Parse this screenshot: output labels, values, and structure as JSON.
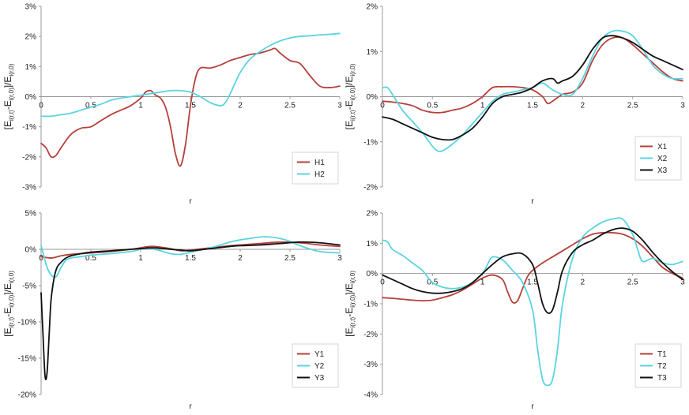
{
  "chart_data": [
    {
      "type": "line",
      "panel": "top-left",
      "title": "",
      "xlabel": "r",
      "ylabel": "[E_i(r,t) - E_i(r,0)] / E_i(r,0)",
      "ylabel_parts": {
        "open": "[E",
        "sub1": "i(r,t)",
        "mid": "-E",
        "sub2": "i(r,0)",
        "close": "]/E",
        "sub3": "i(r,0)"
      },
      "xlim": [
        0,
        3
      ],
      "ylim": [
        -3,
        3
      ],
      "xticks": [
        0,
        0.5,
        1,
        1.5,
        2,
        2.5,
        3
      ],
      "xtick_labels": [
        "0",
        "0.5",
        "1",
        "1.5",
        "2",
        "2.5",
        "3"
      ],
      "yticks": [
        -3,
        -2,
        -1,
        0,
        1,
        2,
        3
      ],
      "ytick_labels": [
        "-3%",
        "-2%",
        "-1%",
        "0%",
        "1%",
        "2%",
        "3%"
      ],
      "legend_position": "bottom-right",
      "series": [
        {
          "name": "H1",
          "color": "#b5403a",
          "x": [
            0,
            0.05,
            0.1,
            0.15,
            0.2,
            0.3,
            0.4,
            0.5,
            0.6,
            0.7,
            0.8,
            0.9,
            1.0,
            1.05,
            1.1,
            1.15,
            1.2,
            1.25,
            1.3,
            1.35,
            1.4,
            1.45,
            1.5,
            1.55,
            1.6,
            1.7,
            1.8,
            1.9,
            2.0,
            2.1,
            2.2,
            2.3,
            2.35,
            2.4,
            2.5,
            2.6,
            2.7,
            2.8,
            2.9,
            3.0
          ],
          "y": [
            -1.55,
            -1.7,
            -2.0,
            -1.95,
            -1.7,
            -1.25,
            -1.05,
            -1.0,
            -0.8,
            -0.6,
            -0.45,
            -0.3,
            -0.05,
            0.15,
            0.2,
            0.05,
            -0.05,
            -0.35,
            -1.0,
            -1.9,
            -2.3,
            -1.6,
            -0.3,
            0.6,
            0.95,
            0.95,
            1.05,
            1.2,
            1.3,
            1.4,
            1.45,
            1.55,
            1.6,
            1.45,
            1.2,
            1.1,
            0.7,
            0.35,
            0.3,
            0.35
          ]
        },
        {
          "name": "H2",
          "color": "#5ad4e0",
          "x": [
            0,
            0.1,
            0.2,
            0.3,
            0.4,
            0.5,
            0.6,
            0.7,
            0.8,
            0.9,
            1.0,
            1.1,
            1.2,
            1.3,
            1.4,
            1.5,
            1.6,
            1.7,
            1.8,
            1.85,
            1.9,
            2.0,
            2.1,
            2.2,
            2.3,
            2.4,
            2.5,
            2.6,
            2.7,
            2.8,
            2.9,
            3.0
          ],
          "y": [
            -0.65,
            -0.65,
            -0.6,
            -0.55,
            -0.45,
            -0.35,
            -0.25,
            -0.12,
            -0.05,
            0.0,
            0.05,
            0.1,
            0.15,
            0.2,
            0.2,
            0.15,
            0.0,
            -0.2,
            -0.3,
            -0.2,
            0.1,
            0.8,
            1.25,
            1.5,
            1.7,
            1.85,
            1.95,
            2.0,
            2.02,
            2.05,
            2.07,
            2.1
          ]
        }
      ]
    },
    {
      "type": "line",
      "panel": "top-right",
      "title": "",
      "xlabel": "r",
      "ylabel": "[E_i(r,t) - E_i(r,0)] / E_i(r,0)",
      "ylabel_parts": {
        "open": "[E",
        "sub1": "i(r,t)",
        "mid": "-E",
        "sub2": "i(r,0)",
        "close": "]/E",
        "sub3": "i(r,0)"
      },
      "xlim": [
        0,
        3
      ],
      "ylim": [
        -2,
        2
      ],
      "xticks": [
        0,
        0.5,
        1,
        1.5,
        2,
        2.5,
        3
      ],
      "xtick_labels": [
        "0",
        "0.5",
        "1",
        "1.5",
        "2",
        "2.5",
        "3"
      ],
      "yticks": [
        -2,
        -1,
        0,
        1,
        2
      ],
      "ytick_labels": [
        "-2%",
        "-1%",
        "0%",
        "1%",
        "2%"
      ],
      "legend_position": "bottom-right",
      "series": [
        {
          "name": "X1",
          "color": "#b5403a",
          "x": [
            0,
            0.1,
            0.2,
            0.3,
            0.4,
            0.5,
            0.6,
            0.7,
            0.8,
            0.9,
            1.0,
            1.1,
            1.2,
            1.3,
            1.4,
            1.5,
            1.6,
            1.65,
            1.7,
            1.8,
            1.9,
            2.0,
            2.1,
            2.2,
            2.3,
            2.4,
            2.5,
            2.6,
            2.7,
            2.8,
            2.9,
            3.0
          ],
          "y": [
            -0.1,
            -0.12,
            -0.15,
            -0.2,
            -0.3,
            -0.35,
            -0.35,
            -0.3,
            -0.25,
            -0.15,
            0.0,
            0.2,
            0.22,
            0.22,
            0.2,
            0.15,
            0.0,
            -0.15,
            -0.1,
            0.05,
            0.1,
            0.3,
            0.8,
            1.15,
            1.3,
            1.3,
            1.15,
            0.95,
            0.75,
            0.55,
            0.4,
            0.35
          ]
        },
        {
          "name": "X2",
          "color": "#5ad4e0",
          "x": [
            0,
            0.05,
            0.1,
            0.2,
            0.3,
            0.4,
            0.5,
            0.55,
            0.6,
            0.7,
            0.8,
            0.9,
            1.0,
            1.1,
            1.2,
            1.3,
            1.4,
            1.5,
            1.6,
            1.7,
            1.8,
            1.9,
            2.0,
            2.1,
            2.2,
            2.3,
            2.4,
            2.5,
            2.6,
            2.7,
            2.8,
            2.9,
            3.0
          ],
          "y": [
            0.2,
            0.2,
            0.05,
            -0.3,
            -0.55,
            -0.8,
            -1.1,
            -1.2,
            -1.2,
            -1.05,
            -0.85,
            -0.6,
            -0.35,
            -0.1,
            0.05,
            0.1,
            0.15,
            0.2,
            0.3,
            0.15,
            0.05,
            0.05,
            0.4,
            0.9,
            1.3,
            1.45,
            1.45,
            1.35,
            1.05,
            0.7,
            0.5,
            0.4,
            0.4
          ]
        },
        {
          "name": "X3",
          "color": "#111111",
          "x": [
            0,
            0.1,
            0.2,
            0.3,
            0.4,
            0.5,
            0.6,
            0.7,
            0.8,
            0.9,
            1.0,
            1.1,
            1.2,
            1.3,
            1.4,
            1.5,
            1.6,
            1.7,
            1.75,
            1.8,
            1.9,
            2.0,
            2.1,
            2.2,
            2.3,
            2.4,
            2.5,
            2.6,
            2.7,
            2.8,
            2.9,
            3.0
          ],
          "y": [
            -0.45,
            -0.5,
            -0.6,
            -0.7,
            -0.8,
            -0.9,
            -0.95,
            -0.95,
            -0.85,
            -0.7,
            -0.45,
            -0.15,
            0.0,
            0.05,
            0.1,
            0.2,
            0.35,
            0.4,
            0.3,
            0.35,
            0.45,
            0.7,
            1.05,
            1.3,
            1.35,
            1.3,
            1.2,
            1.05,
            0.9,
            0.8,
            0.7,
            0.6
          ]
        }
      ]
    },
    {
      "type": "line",
      "panel": "bottom-left",
      "title": "",
      "xlabel": "r",
      "ylabel": "[E_i(r,t) - E_i(r,0)] / E_i(r,0)",
      "ylabel_parts": {
        "open": "[E",
        "sub1": "i(r,t)",
        "mid": "-E",
        "sub2": "i(r,0)",
        "close": "]/E",
        "sub3": "i(r,0)"
      },
      "xlim": [
        0,
        3
      ],
      "ylim": [
        -20,
        5
      ],
      "xticks": [
        0,
        0.5,
        1,
        1.5,
        2,
        2.5,
        3
      ],
      "xtick_labels": [
        "0",
        "0.5",
        "1",
        "1.5",
        "2",
        "2.5",
        "3"
      ],
      "yticks": [
        -20,
        -15,
        -10,
        -5,
        0,
        5
      ],
      "ytick_labels": [
        "-20%",
        "-15%",
        "-10%",
        "-5%",
        "0%",
        "5%"
      ],
      "legend_position": "bottom-right",
      "series": [
        {
          "name": "Y1",
          "color": "#b5403a",
          "x": [
            0,
            0.1,
            0.2,
            0.3,
            0.5,
            0.7,
            0.9,
            1.0,
            1.1,
            1.2,
            1.3,
            1.4,
            1.5,
            1.7,
            1.9,
            2.0,
            2.2,
            2.4,
            2.6,
            2.8,
            3.0
          ],
          "y": [
            -1.0,
            -1.2,
            -0.9,
            -0.7,
            -0.5,
            -0.3,
            0.0,
            0.2,
            0.4,
            0.3,
            0.1,
            -0.2,
            -0.1,
            0.2,
            0.5,
            0.6,
            0.8,
            1.0,
            0.9,
            0.6,
            0.4
          ]
        },
        {
          "name": "Y2",
          "color": "#5ad4e0",
          "x": [
            0,
            0.03,
            0.06,
            0.1,
            0.15,
            0.2,
            0.25,
            0.3,
            0.4,
            0.5,
            0.7,
            0.9,
            1.0,
            1.1,
            1.2,
            1.3,
            1.4,
            1.5,
            1.7,
            1.9,
            2.0,
            2.1,
            2.2,
            2.3,
            2.4,
            2.5,
            2.6,
            2.8,
            3.0
          ],
          "y": [
            0.5,
            -1.0,
            -2.5,
            -3.5,
            -3.8,
            -2.5,
            -1.5,
            -1.2,
            -1.0,
            -0.8,
            -0.6,
            -0.3,
            0.0,
            0.1,
            -0.2,
            -0.6,
            -0.7,
            -0.4,
            0.2,
            1.0,
            1.3,
            1.5,
            1.7,
            1.7,
            1.5,
            1.1,
            0.5,
            -0.3,
            -0.5
          ]
        },
        {
          "name": "Y3",
          "color": "#111111",
          "x": [
            0,
            0.02,
            0.04,
            0.06,
            0.08,
            0.1,
            0.13,
            0.16,
            0.2,
            0.25,
            0.3,
            0.4,
            0.5,
            0.7,
            0.9,
            1.0,
            1.1,
            1.2,
            1.3,
            1.4,
            1.5,
            1.7,
            1.9,
            2.0,
            2.2,
            2.4,
            2.6,
            2.8,
            3.0
          ],
          "y": [
            -6.0,
            -12.0,
            -17.5,
            -17.0,
            -12.0,
            -7.0,
            -4.0,
            -2.5,
            -1.8,
            -1.2,
            -0.9,
            -0.6,
            -0.4,
            -0.2,
            0.0,
            0.1,
            0.2,
            0.15,
            0.0,
            -0.1,
            -0.2,
            0.1,
            0.4,
            0.5,
            0.6,
            0.8,
            1.0,
            0.9,
            0.6
          ]
        }
      ]
    },
    {
      "type": "line",
      "panel": "bottom-right",
      "title": "",
      "xlabel": "r",
      "ylabel": "[E_i(r,t) - E_i(r,0)] / E_i(r,0)",
      "ylabel_parts": {
        "open": "[E",
        "sub1": "i(r,t)",
        "mid": "-E",
        "sub2": "i(r,0)",
        "close": "]/E",
        "sub3": "i(r,0)"
      },
      "xlim": [
        0,
        3
      ],
      "ylim": [
        -4,
        2
      ],
      "xticks": [
        0,
        0.5,
        1,
        1.5,
        2,
        2.5,
        3
      ],
      "xtick_labels": [
        "0",
        "0.5",
        "1",
        "1.5",
        "2",
        "2.5",
        "3"
      ],
      "yticks": [
        -4,
        -3,
        -2,
        -1,
        0,
        1,
        2
      ],
      "ytick_labels": [
        "-4%",
        "-3%",
        "-2%",
        "-1%",
        "0%",
        "1%",
        "2%"
      ],
      "legend_position": "bottom-right",
      "series": [
        {
          "name": "T1",
          "color": "#b5403a",
          "x": [
            0,
            0.1,
            0.2,
            0.3,
            0.4,
            0.5,
            0.6,
            0.7,
            0.8,
            0.9,
            1.0,
            1.1,
            1.2,
            1.25,
            1.3,
            1.35,
            1.4,
            1.45,
            1.5,
            1.6,
            1.7,
            1.8,
            1.9,
            2.0,
            2.1,
            2.2,
            2.3,
            2.4,
            2.5,
            2.6,
            2.7,
            2.8,
            2.9,
            3.0
          ],
          "y": [
            -0.8,
            -0.82,
            -0.85,
            -0.88,
            -0.9,
            -0.88,
            -0.8,
            -0.7,
            -0.55,
            -0.35,
            -0.15,
            -0.05,
            -0.2,
            -0.6,
            -0.95,
            -0.9,
            -0.5,
            -0.1,
            0.1,
            0.35,
            0.55,
            0.75,
            0.95,
            1.15,
            1.3,
            1.35,
            1.35,
            1.3,
            1.15,
            0.9,
            0.55,
            0.2,
            0.0,
            -0.15
          ]
        },
        {
          "name": "T2",
          "color": "#5ad4e0",
          "x": [
            0,
            0.05,
            0.1,
            0.2,
            0.3,
            0.4,
            0.5,
            0.6,
            0.7,
            0.8,
            0.9,
            1.0,
            1.05,
            1.1,
            1.2,
            1.3,
            1.4,
            1.5,
            1.55,
            1.6,
            1.65,
            1.7,
            1.75,
            1.8,
            1.9,
            2.0,
            2.1,
            2.2,
            2.3,
            2.4,
            2.5,
            2.55,
            2.6,
            2.7,
            2.8,
            2.9,
            3.0
          ],
          "y": [
            1.1,
            1.05,
            0.8,
            0.6,
            0.35,
            0.1,
            -0.3,
            -0.45,
            -0.5,
            -0.45,
            -0.3,
            0.0,
            0.3,
            0.55,
            0.45,
            0.1,
            -0.3,
            -1.2,
            -2.5,
            -3.5,
            -3.7,
            -3.5,
            -2.5,
            -1.0,
            0.5,
            1.2,
            1.5,
            1.7,
            1.8,
            1.8,
            1.3,
            0.8,
            0.4,
            0.5,
            0.35,
            0.3,
            0.4
          ]
        },
        {
          "name": "T3",
          "color": "#111111",
          "x": [
            0,
            0.1,
            0.2,
            0.3,
            0.4,
            0.5,
            0.6,
            0.7,
            0.8,
            0.9,
            1.0,
            1.1,
            1.2,
            1.3,
            1.4,
            1.5,
            1.55,
            1.6,
            1.65,
            1.7,
            1.75,
            1.8,
            1.9,
            2.0,
            2.1,
            2.2,
            2.3,
            2.4,
            2.5,
            2.6,
            2.7,
            2.8,
            2.9,
            3.0
          ],
          "y": [
            -0.05,
            -0.2,
            -0.35,
            -0.5,
            -0.6,
            -0.65,
            -0.65,
            -0.6,
            -0.5,
            -0.3,
            0.0,
            0.3,
            0.55,
            0.65,
            0.65,
            0.3,
            -0.3,
            -1.0,
            -1.3,
            -1.2,
            -0.6,
            0.1,
            0.7,
            0.95,
            1.1,
            1.3,
            1.45,
            1.5,
            1.4,
            1.1,
            0.7,
            0.35,
            0.05,
            -0.2
          ]
        }
      ]
    }
  ]
}
